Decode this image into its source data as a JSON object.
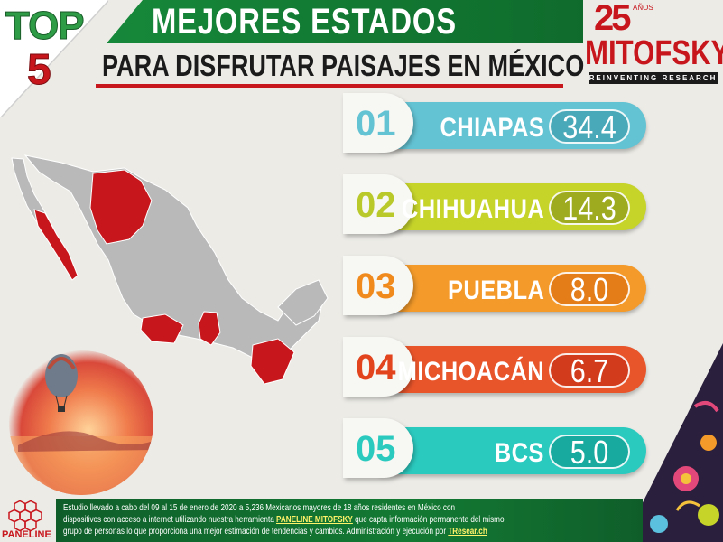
{
  "header": {
    "top_label": "TOP",
    "top_number": "5",
    "title_main": "MEJORES ESTADOS",
    "title_sub": "PARA DISFRUTAR PAISAJES EN MÉXICO"
  },
  "logo": {
    "anniversary": "25",
    "anniversary_small": "AÑOS",
    "brand": "MITOFSKY",
    "tagline": "REINVENTING RESEARCH"
  },
  "chart_data": {
    "type": "bar",
    "title": "MEJORES ESTADOS PARA DISFRUTAR PAISAJES EN MÉXICO",
    "categories": [
      "CHIAPAS",
      "CHIHUAHUA",
      "PUEBLA",
      "MICHOACÁN",
      "BCS"
    ],
    "values": [
      34.4,
      14.3,
      8.0,
      6.7,
      5.0
    ],
    "ranks": [
      "01",
      "02",
      "03",
      "04",
      "05"
    ],
    "value_labels": [
      "34.4",
      "14.3",
      "8.0",
      "6.7",
      "5.0"
    ],
    "colors": [
      "#63c3d3",
      "#c6d42a",
      "#f39a2a",
      "#e9552b",
      "#2bcabf"
    ],
    "pill_colors": [
      "#4aa9b8",
      "#9fab1e",
      "#e47d17",
      "#d23b1c",
      "#19aa9f"
    ],
    "rank_colors": [
      "#63c3d3",
      "#b9c92a",
      "#f08a1d",
      "#e2441e",
      "#2bcabf"
    ],
    "highlighted_states": [
      "Chiapas",
      "Chihuahua",
      "Puebla",
      "Michoacán",
      "Baja California Sur"
    ],
    "map_colors": {
      "base": "#b9b9b9",
      "highlight": "#c8161d"
    }
  },
  "footer": {
    "logo_label": "PANELINE",
    "line1": "Estudio llevado a cabo del 09 al 15 de enero de 2020 a 5,236 Mexicanos mayores de 18 años residentes en México con",
    "line2_pre": "dispositivos con acceso a internet utilizando nuestra herramienta ",
    "line2_link": "PANELINE MITOFSKY",
    "line2_post": " que capta información permanente del mismo",
    "line3_pre": "grupo de personas lo que proporciona una mejor estimación de tendencias y cambios. Administración y ejecución por ",
    "line3_link": "TResear.ch"
  }
}
